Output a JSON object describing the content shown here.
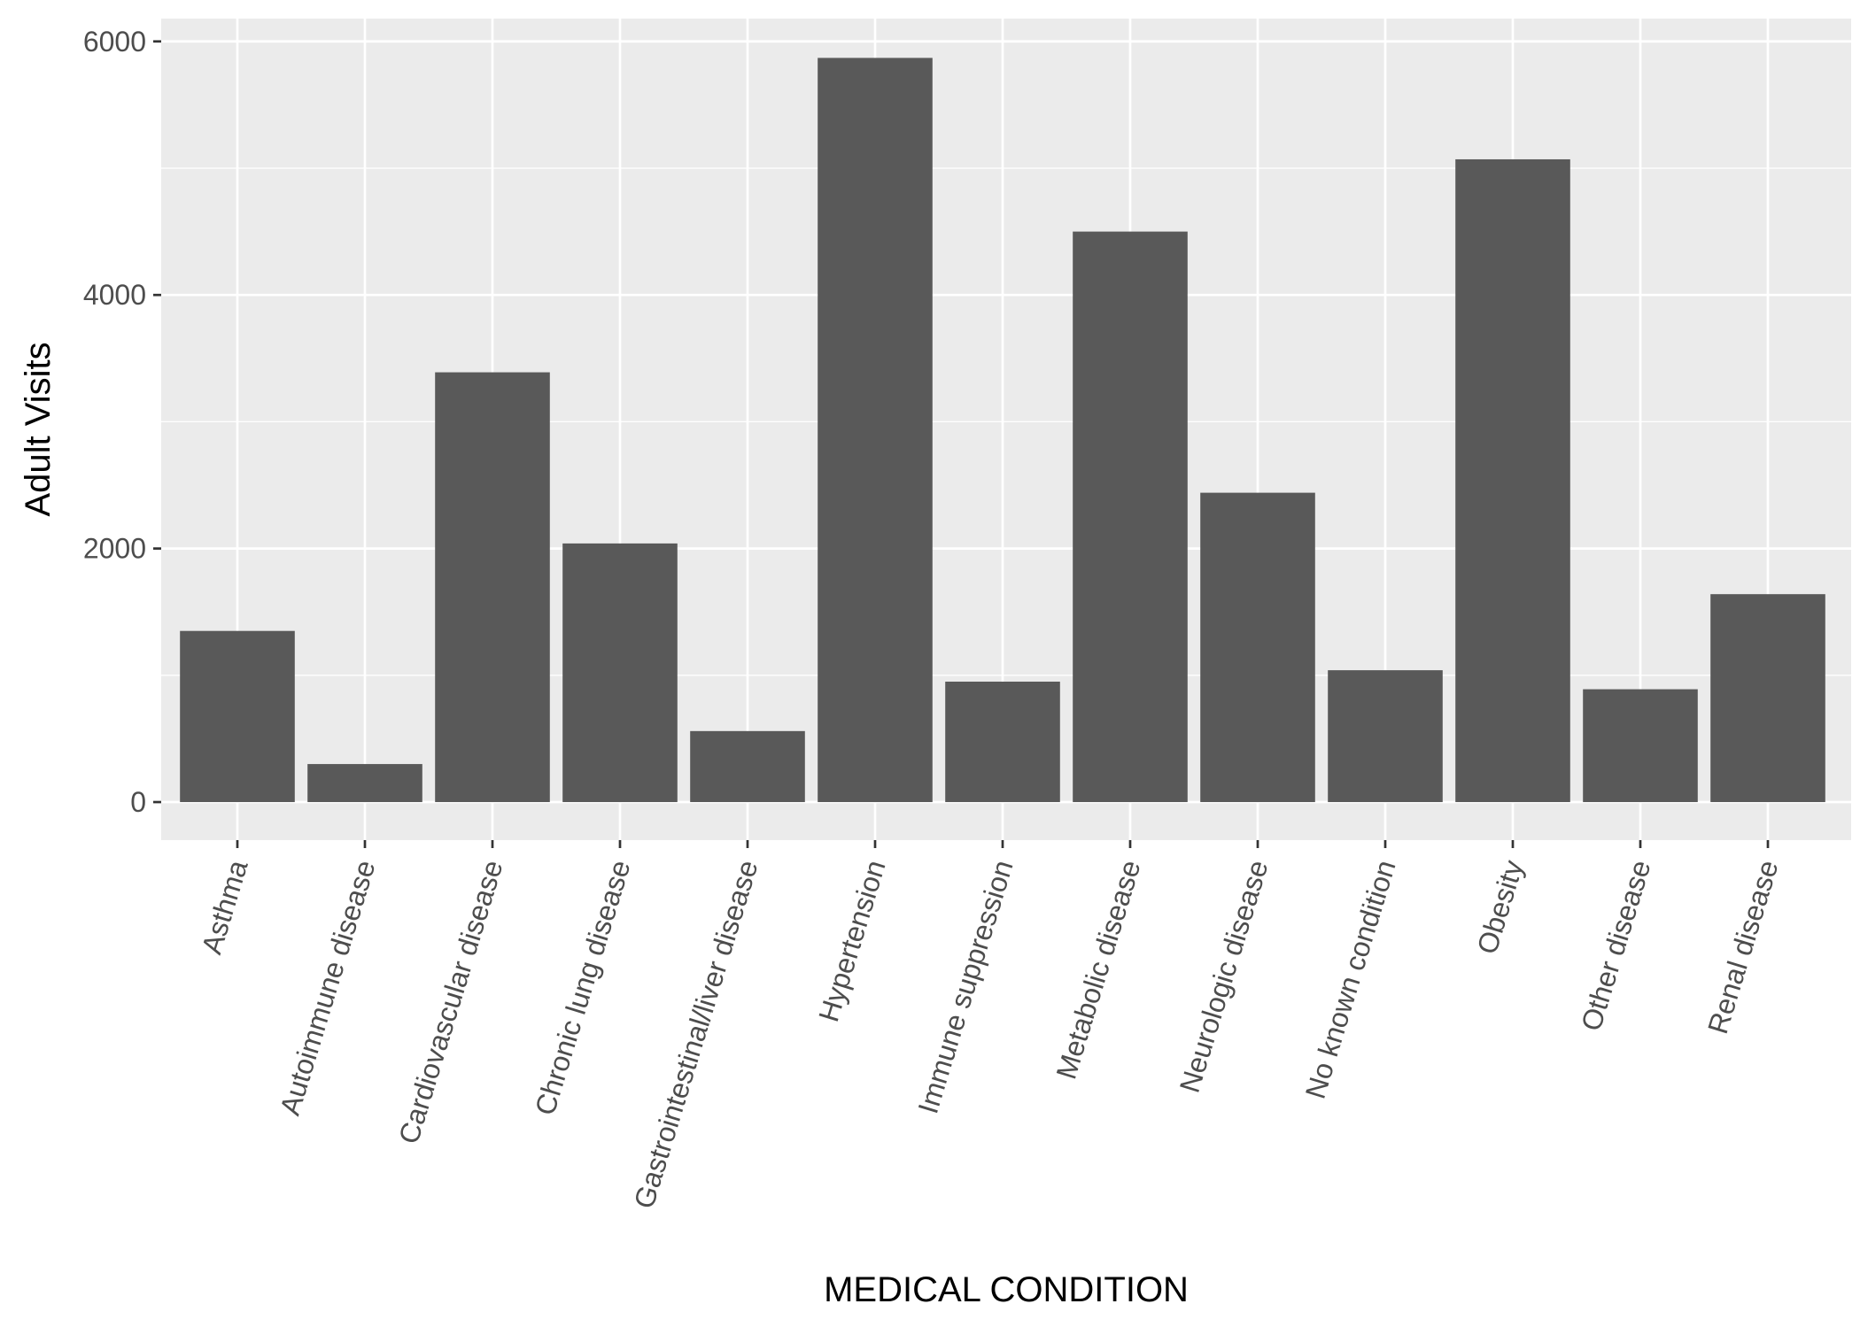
{
  "chart_data": {
    "type": "bar",
    "title": "",
    "xlabel": "MEDICAL CONDITION",
    "ylabel": "Adult Visits",
    "categories": [
      "Asthma",
      "Autoimmune disease",
      "Cardiovascular disease",
      "Chronic lung disease",
      "Gastrointestinal/liver disease",
      "Hypertension",
      "Immune suppression",
      "Metabolic disease",
      "Neurologic disease",
      "No known condition",
      "Obesity",
      "Other disease",
      "Renal disease"
    ],
    "values": [
      1350,
      300,
      3390,
      2040,
      560,
      5870,
      950,
      4500,
      2440,
      1040,
      5070,
      890,
      1640
    ],
    "ylim": [
      -300,
      6180
    ],
    "yticks": [
      0,
      2000,
      4000,
      6000
    ],
    "grid": true,
    "legend": "none",
    "colors": {
      "panel_background": "#ebebeb",
      "grid": "#ffffff",
      "bar_fill": "#595959",
      "tick_label": "#4d4d4d",
      "tick_mark": "#333333",
      "axis_title": "#000000"
    }
  }
}
